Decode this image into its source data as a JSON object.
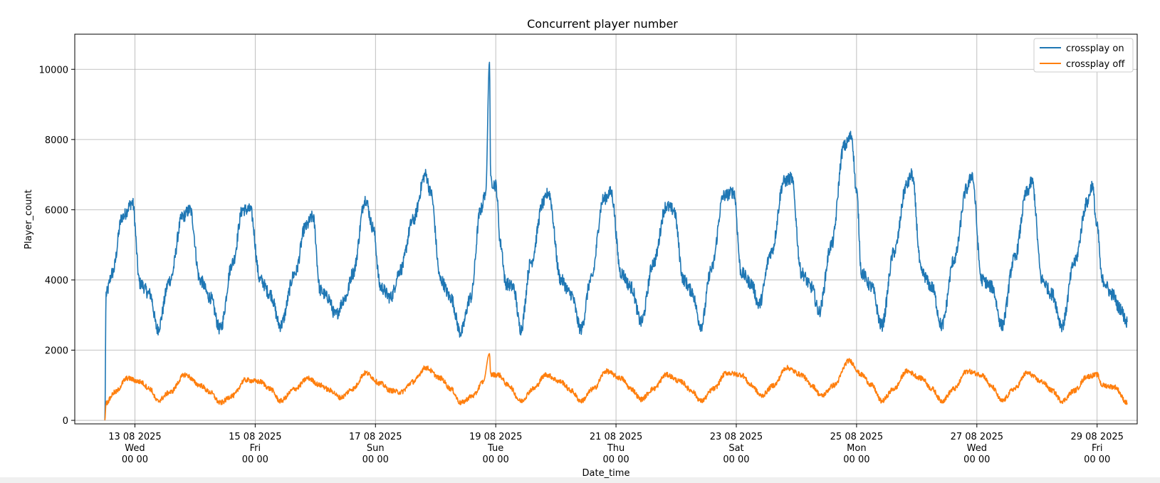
{
  "chart_data": {
    "type": "line",
    "title": "Concurrent player number",
    "xlabel": "Date_time",
    "ylabel": "Player_count",
    "ylim": [
      -100,
      11000
    ],
    "xlim_days": [
      "2025-08-12 00:00",
      "2025-08-29 16:00"
    ],
    "grid": true,
    "legend_position": "top-right",
    "y_ticks": [
      0,
      2000,
      4000,
      6000,
      8000,
      10000
    ],
    "x_ticks": [
      {
        "date": "2025-08-13 00:00",
        "line1": "13 08 2025",
        "line2": "Wed",
        "line3": "00 00"
      },
      {
        "date": "2025-08-15 00:00",
        "line1": "15 08 2025",
        "line2": "Fri",
        "line3": "00 00"
      },
      {
        "date": "2025-08-17 00:00",
        "line1": "17 08 2025",
        "line2": "Sun",
        "line3": "00 00"
      },
      {
        "date": "2025-08-19 00:00",
        "line1": "19 08 2025",
        "line2": "Tue",
        "line3": "00 00"
      },
      {
        "date": "2025-08-21 00:00",
        "line1": "21 08 2025",
        "line2": "Thu",
        "line3": "00 00"
      },
      {
        "date": "2025-08-23 00:00",
        "line1": "23 08 2025",
        "line2": "Sat",
        "line3": "00 00"
      },
      {
        "date": "2025-08-25 00:00",
        "line1": "25 08 2025",
        "line2": "Mon",
        "line3": "00 00"
      },
      {
        "date": "2025-08-27 00:00",
        "line1": "27 08 2025",
        "line2": "Wed",
        "line3": "00 00"
      },
      {
        "date": "2025-08-29 00:00",
        "line1": "29 08 2025",
        "line2": "Fri",
        "line3": "00 00"
      }
    ],
    "series": [
      {
        "name": "crossplay on",
        "color": "#1f77b4",
        "points": [
          [
            "2025-08-12 12:00",
            0
          ],
          [
            "2025-08-12 12:30",
            3600
          ],
          [
            "2025-08-12 15:00",
            4200
          ],
          [
            "2025-08-12 19:00",
            5800
          ],
          [
            "2025-08-12 23:00",
            6200
          ],
          [
            "2025-08-13 02:00",
            3900
          ],
          [
            "2025-08-13 06:00",
            3600
          ],
          [
            "2025-08-13 09:00",
            2600
          ],
          [
            "2025-08-13 14:00",
            4000
          ],
          [
            "2025-08-13 19:00",
            5800
          ],
          [
            "2025-08-13 22:00",
            6000
          ],
          [
            "2025-08-14 02:00",
            4000
          ],
          [
            "2025-08-14 06:00",
            3500
          ],
          [
            "2025-08-14 10:00",
            2600
          ],
          [
            "2025-08-14 15:00",
            4500
          ],
          [
            "2025-08-14 19:00",
            6000
          ],
          [
            "2025-08-14 22:00",
            6000
          ],
          [
            "2025-08-15 02:00",
            4000
          ],
          [
            "2025-08-15 06:00",
            3600
          ],
          [
            "2025-08-15 10:00",
            2700
          ],
          [
            "2025-08-15 16:00",
            4200
          ],
          [
            "2025-08-15 20:00",
            5500
          ],
          [
            "2025-08-15 23:00",
            5800
          ],
          [
            "2025-08-16 02:00",
            3700
          ],
          [
            "2025-08-16 05:00",
            3500
          ],
          [
            "2025-08-16 08:00",
            3000
          ],
          [
            "2025-08-16 12:00",
            3500
          ],
          [
            "2025-08-16 15:00",
            4200
          ],
          [
            "2025-08-16 20:00",
            6300
          ],
          [
            "2025-08-16 23:00",
            5500
          ],
          [
            "2025-08-17 02:00",
            3800
          ],
          [
            "2025-08-17 06:00",
            3500
          ],
          [
            "2025-08-17 10:00",
            4300
          ],
          [
            "2025-08-17 15:00",
            5700
          ],
          [
            "2025-08-17 20:00",
            7000
          ],
          [
            "2025-08-17 22:00",
            6500
          ],
          [
            "2025-08-18 02:00",
            4000
          ],
          [
            "2025-08-18 06:00",
            3500
          ],
          [
            "2025-08-18 10:00",
            2500
          ],
          [
            "2025-08-18 14:00",
            3500
          ],
          [
            "2025-08-18 18:00",
            6000
          ],
          [
            "2025-08-18 20:00",
            6500
          ],
          [
            "2025-08-18 21:30",
            10200
          ],
          [
            "2025-08-18 22:00",
            6800
          ],
          [
            "2025-08-19 00:00",
            6700
          ],
          [
            "2025-08-19 02:00",
            5000
          ],
          [
            "2025-08-19 04:00",
            3900
          ],
          [
            "2025-08-19 07:00",
            3800
          ],
          [
            "2025-08-19 10:00",
            2600
          ],
          [
            "2025-08-19 14:00",
            4500
          ],
          [
            "2025-08-19 19:00",
            6200
          ],
          [
            "2025-08-19 21:00",
            6500
          ],
          [
            "2025-08-20 02:00",
            4000
          ],
          [
            "2025-08-20 06:00",
            3600
          ],
          [
            "2025-08-20 10:00",
            2600
          ],
          [
            "2025-08-20 14:00",
            4000
          ],
          [
            "2025-08-20 19:00",
            6300
          ],
          [
            "2025-08-20 22:00",
            6500
          ],
          [
            "2025-08-21 02:00",
            4200
          ],
          [
            "2025-08-21 06:00",
            3800
          ],
          [
            "2025-08-21 10:00",
            2800
          ],
          [
            "2025-08-21 15:00",
            4500
          ],
          [
            "2025-08-21 20:00",
            6100
          ],
          [
            "2025-08-21 23:00",
            6000
          ],
          [
            "2025-08-22 03:00",
            4000
          ],
          [
            "2025-08-22 06:00",
            3700
          ],
          [
            "2025-08-22 10:00",
            2700
          ],
          [
            "2025-08-22 14:00",
            4300
          ],
          [
            "2025-08-22 19:00",
            6400
          ],
          [
            "2025-08-22 23:00",
            6500
          ],
          [
            "2025-08-23 02:00",
            4200
          ],
          [
            "2025-08-23 06:00",
            3900
          ],
          [
            "2025-08-23 09:00",
            3300
          ],
          [
            "2025-08-23 14:00",
            4800
          ],
          [
            "2025-08-23 19:00",
            6800
          ],
          [
            "2025-08-23 22:00",
            6900
          ],
          [
            "2025-08-24 02:00",
            4200
          ],
          [
            "2025-08-24 06:00",
            3800
          ],
          [
            "2025-08-24 09:00",
            3100
          ],
          [
            "2025-08-24 14:00",
            5000
          ],
          [
            "2025-08-24 19:00",
            7800
          ],
          [
            "2025-08-24 22:00",
            8100
          ],
          [
            "2025-08-25 00:00",
            6500
          ],
          [
            "2025-08-25 02:00",
            4200
          ],
          [
            "2025-08-25 06:00",
            3800
          ],
          [
            "2025-08-25 10:00",
            2700
          ],
          [
            "2025-08-25 15:00",
            4800
          ],
          [
            "2025-08-25 20:00",
            6700
          ],
          [
            "2025-08-25 22:00",
            7000
          ],
          [
            "2025-08-26 02:00",
            4200
          ],
          [
            "2025-08-26 06:00",
            3800
          ],
          [
            "2025-08-26 10:00",
            2700
          ],
          [
            "2025-08-26 15:00",
            4600
          ],
          [
            "2025-08-26 20:00",
            6600
          ],
          [
            "2025-08-26 22:00",
            7000
          ],
          [
            "2025-08-27 02:00",
            4000
          ],
          [
            "2025-08-27 06:00",
            3800
          ],
          [
            "2025-08-27 10:00",
            2700
          ],
          [
            "2025-08-27 15:00",
            4600
          ],
          [
            "2025-08-27 20:00",
            6500
          ],
          [
            "2025-08-27 22:00",
            6800
          ],
          [
            "2025-08-28 02:00",
            4000
          ],
          [
            "2025-08-28 06:00",
            3600
          ],
          [
            "2025-08-28 10:00",
            2700
          ],
          [
            "2025-08-28 15:00",
            4500
          ],
          [
            "2025-08-28 20:00",
            6200
          ],
          [
            "2025-08-28 22:00",
            6700
          ],
          [
            "2025-08-29 00:00",
            5500
          ],
          [
            "2025-08-29 02:00",
            4000
          ],
          [
            "2025-08-29 06:00",
            3600
          ],
          [
            "2025-08-29 09:00",
            3200
          ],
          [
            "2025-08-29 12:00",
            2800
          ]
        ]
      },
      {
        "name": "crossplay off",
        "color": "#ff7f0e",
        "points": [
          [
            "2025-08-12 12:00",
            0
          ],
          [
            "2025-08-12 12:30",
            500
          ],
          [
            "2025-08-12 16:00",
            800
          ],
          [
            "2025-08-12 21:00",
            1200
          ],
          [
            "2025-08-13 02:00",
            1100
          ],
          [
            "2025-08-13 06:00",
            900
          ],
          [
            "2025-08-13 09:00",
            550
          ],
          [
            "2025-08-13 14:00",
            800
          ],
          [
            "2025-08-13 20:00",
            1300
          ],
          [
            "2025-08-14 02:00",
            1000
          ],
          [
            "2025-08-14 06:00",
            800
          ],
          [
            "2025-08-14 10:00",
            500
          ],
          [
            "2025-08-14 15:00",
            700
          ],
          [
            "2025-08-14 20:00",
            1150
          ],
          [
            "2025-08-15 02:00",
            1100
          ],
          [
            "2025-08-15 06:00",
            900
          ],
          [
            "2025-08-15 10:00",
            550
          ],
          [
            "2025-08-15 16:00",
            900
          ],
          [
            "2025-08-15 21:00",
            1200
          ],
          [
            "2025-08-16 02:00",
            1000
          ],
          [
            "2025-08-16 06:00",
            850
          ],
          [
            "2025-08-16 10:00",
            650
          ],
          [
            "2025-08-16 15:00",
            900
          ],
          [
            "2025-08-16 20:00",
            1350
          ],
          [
            "2025-08-17 02:00",
            1050
          ],
          [
            "2025-08-17 06:00",
            850
          ],
          [
            "2025-08-17 10:00",
            800
          ],
          [
            "2025-08-17 15:00",
            1100
          ],
          [
            "2025-08-17 20:00",
            1500
          ],
          [
            "2025-08-18 02:00",
            1200
          ],
          [
            "2025-08-18 06:00",
            900
          ],
          [
            "2025-08-18 10:00",
            500
          ],
          [
            "2025-08-18 15:00",
            700
          ],
          [
            "2025-08-18 19:00",
            1100
          ],
          [
            "2025-08-18 21:30",
            1900
          ],
          [
            "2025-08-18 22:00",
            1300
          ],
          [
            "2025-08-19 01:00",
            1300
          ],
          [
            "2025-08-19 05:00",
            1000
          ],
          [
            "2025-08-19 10:00",
            550
          ],
          [
            "2025-08-19 15:00",
            900
          ],
          [
            "2025-08-19 20:00",
            1300
          ],
          [
            "2025-08-20 02:00",
            1100
          ],
          [
            "2025-08-20 06:00",
            850
          ],
          [
            "2025-08-20 10:00",
            550
          ],
          [
            "2025-08-20 15:00",
            900
          ],
          [
            "2025-08-20 20:00",
            1400
          ],
          [
            "2025-08-21 02:00",
            1200
          ],
          [
            "2025-08-21 06:00",
            900
          ],
          [
            "2025-08-21 10:00",
            600
          ],
          [
            "2025-08-21 15:00",
            900
          ],
          [
            "2025-08-21 20:00",
            1300
          ],
          [
            "2025-08-22 02:00",
            1100
          ],
          [
            "2025-08-22 06:00",
            850
          ],
          [
            "2025-08-22 10:00",
            550
          ],
          [
            "2025-08-22 15:00",
            900
          ],
          [
            "2025-08-22 20:00",
            1350
          ],
          [
            "2025-08-23 02:00",
            1300
          ],
          [
            "2025-08-23 06:00",
            1000
          ],
          [
            "2025-08-23 10:00",
            700
          ],
          [
            "2025-08-23 15:00",
            1000
          ],
          [
            "2025-08-23 20:00",
            1500
          ],
          [
            "2025-08-24 02:00",
            1300
          ],
          [
            "2025-08-24 06:00",
            1000
          ],
          [
            "2025-08-24 10:00",
            700
          ],
          [
            "2025-08-24 15:00",
            1000
          ],
          [
            "2025-08-24 21:00",
            1700
          ],
          [
            "2025-08-25 02:00",
            1300
          ],
          [
            "2025-08-25 06:00",
            1000
          ],
          [
            "2025-08-25 10:00",
            550
          ],
          [
            "2025-08-25 15:00",
            900
          ],
          [
            "2025-08-25 20:00",
            1400
          ],
          [
            "2025-08-26 02:00",
            1200
          ],
          [
            "2025-08-26 06:00",
            900
          ],
          [
            "2025-08-26 10:00",
            550
          ],
          [
            "2025-08-26 15:00",
            900
          ],
          [
            "2025-08-26 20:00",
            1400
          ],
          [
            "2025-08-27 02:00",
            1300
          ],
          [
            "2025-08-27 06:00",
            950
          ],
          [
            "2025-08-27 10:00",
            550
          ],
          [
            "2025-08-27 15:00",
            900
          ],
          [
            "2025-08-27 20:00",
            1350
          ],
          [
            "2025-08-28 02:00",
            1100
          ],
          [
            "2025-08-28 06:00",
            850
          ],
          [
            "2025-08-28 10:00",
            550
          ],
          [
            "2025-08-28 15:00",
            850
          ],
          [
            "2025-08-28 20:00",
            1250
          ],
          [
            "2025-08-29 00:00",
            1300
          ],
          [
            "2025-08-29 02:00",
            1000
          ],
          [
            "2025-08-29 07:00",
            950
          ],
          [
            "2025-08-29 12:00",
            500
          ]
        ]
      }
    ]
  }
}
